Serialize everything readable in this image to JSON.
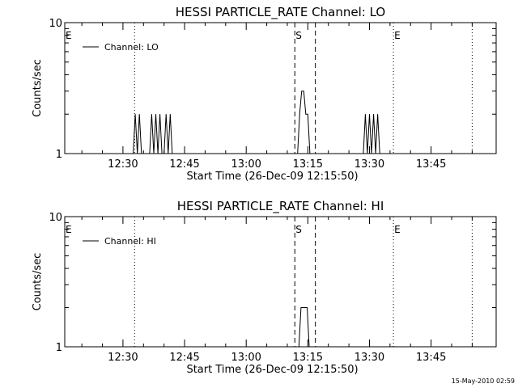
{
  "chart_data": [
    {
      "type": "line",
      "title": "HESSI PARTICLE_RATE Channel: LO",
      "xlabel": "Start Time (26-Dec-09 12:15:50)",
      "ylabel": "Counts/sec",
      "y_scale": "log",
      "ylim": [
        1,
        10
      ],
      "y_ticks": [
        {
          "value": 1,
          "label": "1"
        },
        {
          "value": 10,
          "label": "10"
        }
      ],
      "xlim": [
        "12:15:50",
        "14:00:50"
      ],
      "x_ticks": [
        "12:30",
        "12:45",
        "13:00",
        "13:15",
        "13:30",
        "13:45"
      ],
      "legend": {
        "position": "top-left",
        "entries": [
          "Channel: LO"
        ]
      },
      "markers": [
        {
          "label": "E",
          "time": "12:15:50",
          "style": "dotted"
        },
        {
          "label": "",
          "time": "12:32:50",
          "style": "dotted"
        },
        {
          "label": "S",
          "time": "13:11:50",
          "style": "dashed"
        },
        {
          "label": "",
          "time": "13:16:50",
          "style": "dashed"
        },
        {
          "label": "E",
          "time": "13:35:50",
          "style": "dotted"
        },
        {
          "label": "",
          "time": "13:55:00",
          "style": "dotted"
        }
      ],
      "series": [
        {
          "name": "Channel: LO",
          "x": [
            "12:15:50",
            "12:32:30",
            "12:33:00",
            "12:33:30",
            "12:34:00",
            "12:34:30",
            "12:35:00",
            "12:35:30",
            "12:36:00",
            "12:36:30",
            "12:37:00",
            "12:37:30",
            "12:38:00",
            "12:38:30",
            "12:39:00",
            "12:39:30",
            "12:40:00",
            "12:40:30",
            "12:41:00",
            "12:41:30",
            "12:42:00",
            "12:42:30",
            "12:43:00",
            "13:12:30",
            "13:13:00",
            "13:13:30",
            "13:14:00",
            "13:14:30",
            "13:15:00",
            "13:15:30",
            "13:16:00",
            "13:16:30",
            "13:28:30",
            "13:29:00",
            "13:29:30",
            "13:30:00",
            "13:30:30",
            "13:31:00",
            "13:31:30",
            "13:32:00",
            "13:32:30",
            "14:00:50"
          ],
          "y": [
            1,
            1,
            2,
            1,
            2,
            1,
            1,
            1,
            1,
            1,
            2,
            1,
            2,
            1,
            2,
            1,
            1,
            2,
            1,
            2,
            1,
            1,
            1,
            1,
            2,
            3,
            3,
            2,
            2,
            1,
            1,
            1,
            1,
            2,
            1,
            2,
            1,
            2,
            1,
            2,
            1,
            1
          ]
        }
      ]
    },
    {
      "type": "line",
      "title": "HESSI PARTICLE_RATE Channel: HI",
      "xlabel": "Start Time (26-Dec-09 12:15:50)",
      "ylabel": "Counts/sec",
      "y_scale": "log",
      "ylim": [
        1,
        10
      ],
      "y_ticks": [
        {
          "value": 1,
          "label": "1"
        },
        {
          "value": 10,
          "label": "10"
        }
      ],
      "xlim": [
        "12:15:50",
        "14:00:50"
      ],
      "x_ticks": [
        "12:30",
        "12:45",
        "13:00",
        "13:15",
        "13:30",
        "13:45"
      ],
      "legend": {
        "position": "top-left",
        "entries": [
          "Channel: HI"
        ]
      },
      "markers": [
        {
          "label": "E",
          "time": "12:15:50",
          "style": "dotted"
        },
        {
          "label": "",
          "time": "12:32:50",
          "style": "dotted"
        },
        {
          "label": "S",
          "time": "13:11:50",
          "style": "dashed"
        },
        {
          "label": "",
          "time": "13:16:50",
          "style": "dashed"
        },
        {
          "label": "E",
          "time": "13:35:50",
          "style": "dotted"
        },
        {
          "label": "",
          "time": "13:55:00",
          "style": "dotted"
        }
      ],
      "series": [
        {
          "name": "Channel: HI",
          "x": [
            "12:15:50",
            "13:12:50",
            "13:13:20",
            "13:13:50",
            "13:14:20",
            "13:14:50",
            "13:15:20",
            "14:00:50"
          ],
          "y": [
            1,
            1,
            2,
            2,
            2,
            2,
            1,
            1
          ]
        }
      ]
    }
  ],
  "footer": {
    "timestamp": "15-May-2010 02:59"
  }
}
